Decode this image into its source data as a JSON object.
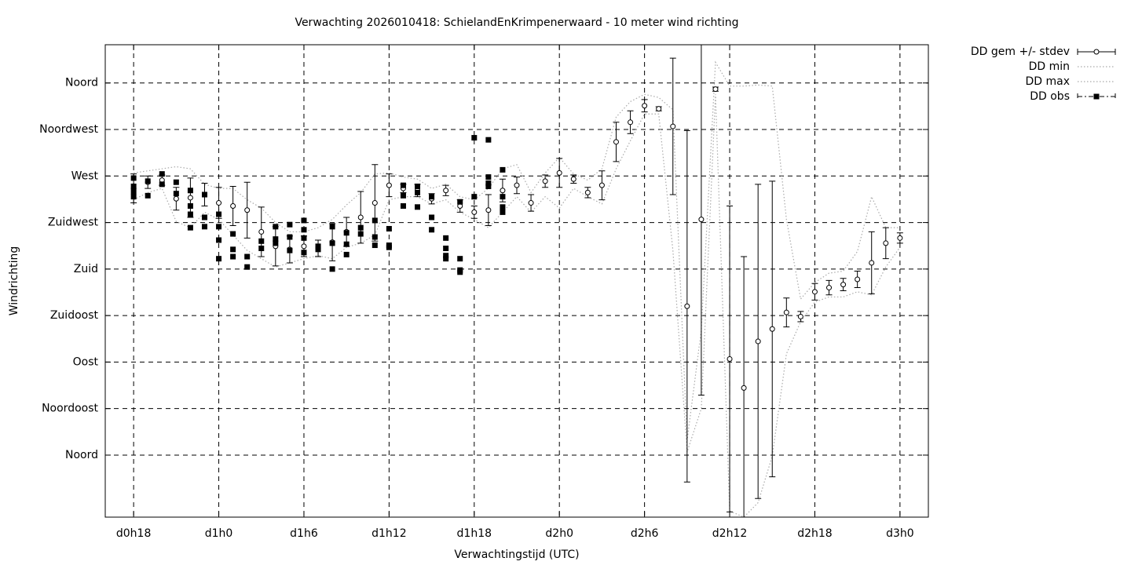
{
  "chart_data": {
    "type": "errorbar",
    "title": "Verwachting 2026010418: SchielandEnKrimpenerwaard - 10 meter wind richting",
    "xlabel": "Verwachtingstijd (UTC)",
    "ylabel": "Windrichting",
    "xlim": [
      16,
      74
    ],
    "ylim": [
      -60,
      397
    ],
    "grid": true,
    "legend": "outside-top-right",
    "xticks": [
      {
        "value": 18,
        "label": "d0h18"
      },
      {
        "value": 24,
        "label": "d1h0"
      },
      {
        "value": 30,
        "label": "d1h6"
      },
      {
        "value": 36,
        "label": "d1h12"
      },
      {
        "value": 42,
        "label": "d1h18"
      },
      {
        "value": 48,
        "label": "d2h0"
      },
      {
        "value": 54,
        "label": "d2h6"
      },
      {
        "value": 60,
        "label": "d2h12"
      },
      {
        "value": 66,
        "label": "d2h18"
      },
      {
        "value": 72,
        "label": "d3h0"
      }
    ],
    "yticks": [
      {
        "value": 0,
        "label": "Noord"
      },
      {
        "value": 45,
        "label": "Noordoost"
      },
      {
        "value": 90,
        "label": "Oost"
      },
      {
        "value": 135,
        "label": "Zuidoost"
      },
      {
        "value": 180,
        "label": "Zuid"
      },
      {
        "value": 225,
        "label": "Zuidwest"
      },
      {
        "value": 270,
        "label": "West"
      },
      {
        "value": 315,
        "label": "Noordwest"
      },
      {
        "value": 360,
        "label": "Noord"
      }
    ],
    "x": [
      18,
      19,
      20,
      21,
      22,
      23,
      24,
      25,
      26,
      27,
      28,
      29,
      30,
      31,
      32,
      33,
      34,
      35,
      36,
      37,
      38,
      39,
      40,
      41,
      42,
      43,
      44,
      45,
      46,
      47,
      48,
      49,
      50,
      51,
      52,
      53,
      54,
      55,
      56,
      57,
      58,
      59,
      60,
      61,
      62,
      63,
      64,
      65,
      66,
      67,
      68,
      69,
      70,
      71,
      72
    ],
    "series": [
      {
        "name": "DD gem +/- stdev",
        "color": "#000000",
        "style": "errorbar",
        "values": [
          258,
          264,
          266,
          248,
          249,
          252,
          244,
          241,
          237,
          216,
          202,
          199,
          202,
          200,
          206,
          216,
          230,
          244,
          261,
          258,
          256,
          248,
          256,
          241,
          235,
          237,
          256,
          261,
          244,
          265,
          273,
          267,
          254,
          261,
          303,
          322,
          338,
          335,
          318,
          144,
          228,
          354,
          93,
          65,
          110,
          122,
          138,
          134,
          158,
          162,
          165,
          170,
          186,
          205,
          210
        ],
        "errors": [
          14,
          6,
          5,
          11,
          19,
          11,
          15,
          19,
          27,
          24,
          19,
          13,
          10,
          8,
          18,
          14,
          25,
          37,
          11,
          4,
          6,
          5,
          5,
          6,
          6,
          15,
          11,
          8,
          8,
          6,
          14,
          4,
          5,
          14,
          19,
          11,
          6,
          2,
          66,
          170,
          170,
          2,
          148,
          127,
          152,
          143,
          14,
          5,
          8,
          7,
          6,
          8,
          30,
          15,
          5
        ]
      },
      {
        "name": "DD min",
        "color": "#aaaaaa",
        "style": "dotted",
        "values": [
          247,
          254,
          258,
          226,
          220,
          235,
          228,
          213,
          198,
          190,
          182,
          186,
          190,
          193,
          190,
          201,
          205,
          213,
          247,
          250,
          250,
          243,
          247,
          235,
          228,
          220,
          235,
          250,
          235,
          250,
          239,
          258,
          250,
          243,
          277,
          304,
          330,
          330,
          198,
          3,
          45,
          349,
          -54,
          -60,
          -46,
          -1,
          98,
          129,
          148,
          153,
          153,
          158,
          155,
          182,
          201
        ]
      },
      {
        "name": "DD max",
        "color": "#aaaaaa",
        "style": "dotted",
        "values": [
          273,
          275,
          277,
          279,
          277,
          262,
          258,
          258,
          247,
          239,
          225,
          216,
          216,
          220,
          228,
          242,
          254,
          272,
          273,
          269,
          267,
          258,
          262,
          250,
          247,
          258,
          277,
          281,
          254,
          273,
          288,
          272,
          266,
          277,
          327,
          342,
          349,
          346,
          334,
          14,
          121,
          380,
          357,
          357,
          358,
          357,
          228,
          151,
          167,
          176,
          178,
          197,
          250,
          220,
          220
        ]
      },
      {
        "name": "DD obs",
        "color": "#000000",
        "style": "squares",
        "x": [
          18,
          18,
          18,
          18,
          19,
          19,
          20,
          20,
          21,
          21,
          22,
          22,
          22,
          22,
          23,
          23,
          23,
          24,
          24,
          24,
          24,
          25,
          25,
          25,
          26,
          26,
          27,
          27,
          28,
          28,
          28,
          29,
          29,
          29,
          30,
          30,
          30,
          30,
          31,
          31,
          32,
          32,
          32,
          33,
          33,
          33,
          34,
          34,
          35,
          35,
          35,
          36,
          36,
          36,
          37,
          37,
          37,
          38,
          38,
          38,
          39,
          39,
          39,
          40,
          40,
          40,
          40,
          41,
          41,
          41,
          41,
          42,
          42,
          43,
          43,
          43,
          43,
          44,
          44,
          44,
          44
        ],
        "values": [
          268,
          260,
          255,
          250,
          265,
          251,
          272,
          262,
          264,
          253,
          256,
          241,
          233,
          220,
          252,
          230,
          221,
          233,
          221,
          208,
          190,
          214,
          199,
          192,
          192,
          182,
          207,
          200,
          221,
          209,
          205,
          223,
          211,
          198,
          227,
          218,
          210,
          196,
          202,
          199,
          221,
          205,
          180,
          215,
          204,
          194,
          220,
          214,
          227,
          211,
          203,
          219,
          203,
          201,
          261,
          251,
          241,
          260,
          254,
          240,
          250,
          230,
          218,
          210,
          200,
          193,
          190,
          245,
          190,
          179,
          177,
          307,
          250,
          305,
          269,
          263,
          260,
          276,
          250,
          240,
          235
        ]
      }
    ]
  }
}
